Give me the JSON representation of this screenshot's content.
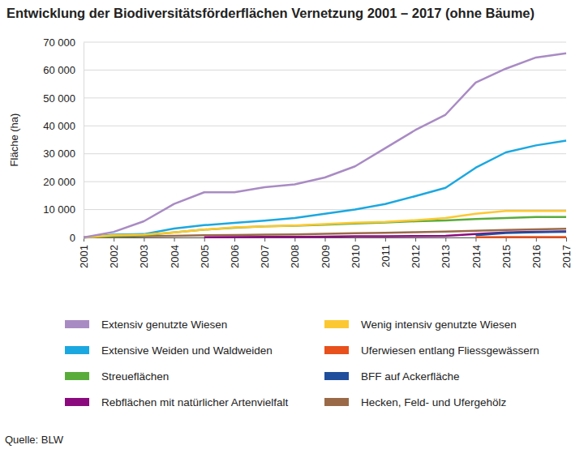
{
  "chart_data": {
    "type": "line",
    "title": "Entwicklung der Biodiversitätsförderflächen Vernetzung 2001 – 2017 (ohne Bäume)",
    "y_label": "Fläche (ha)",
    "source": "Quelle: BLW",
    "x": [
      2001,
      2002,
      2003,
      2004,
      2005,
      2006,
      2007,
      2008,
      2009,
      2010,
      2011,
      2012,
      2013,
      2014,
      2015,
      2016,
      2017
    ],
    "xlim": [
      2001,
      2017
    ],
    "xticks": [
      2001,
      2002,
      2003,
      2004,
      2005,
      2006,
      2007,
      2008,
      2009,
      2010,
      2011,
      2012,
      2013,
      2014,
      2015,
      2016,
      2017
    ],
    "ylim": [
      0,
      70000
    ],
    "yticks": [
      0,
      {
        "value": 10000,
        "label": "10 000"
      },
      {
        "value": 20000,
        "label": "20 000"
      },
      {
        "value": 30000,
        "label": "30 000"
      },
      {
        "value": 40000,
        "label": "40 000"
      },
      {
        "value": 50000,
        "label": "50 000"
      },
      {
        "value": 60000,
        "label": "60 000"
      },
      {
        "value": 70000,
        "label": "70 000"
      }
    ],
    "grid": true,
    "legend": "bottom",
    "series": [
      {
        "name": "Extensiv genutzte Wiesen",
        "color": "#a98bc4",
        "values": [
          0,
          2000,
          5800,
          12000,
          16200,
          16200,
          18000,
          19000,
          21500,
          25500,
          32000,
          38500,
          44000,
          55500,
          60500,
          64500,
          66000
        ]
      },
      {
        "name": "Wenig intensiv genutzte Wiesen",
        "color": "#fcc832",
        "values": [
          0,
          800,
          1000,
          1800,
          2800,
          3600,
          4000,
          4300,
          4800,
          5300,
          5600,
          6200,
          7000,
          8500,
          9500,
          9500,
          9500
        ]
      },
      {
        "name": "Extensive Weiden und Waldweiden",
        "color": "#1ba8e0",
        "values": [
          0,
          1000,
          1200,
          3200,
          4400,
          5200,
          6000,
          7000,
          8500,
          10000,
          12000,
          14800,
          17800,
          25000,
          30500,
          33000,
          34700
        ]
      },
      {
        "name": "Uferwiesen entlang Fliessgewässern",
        "color": "#e8501c",
        "values": [
          null,
          null,
          null,
          null,
          null,
          null,
          null,
          null,
          null,
          null,
          null,
          null,
          null,
          100,
          150,
          150,
          150
        ]
      },
      {
        "name": "Streueflächen",
        "color": "#5aac3a",
        "values": [
          0,
          500,
          800,
          1800,
          2800,
          3500,
          4000,
          4200,
          4600,
          5000,
          5400,
          5800,
          6100,
          6600,
          7000,
          7300,
          7300
        ]
      },
      {
        "name": "BFF auf Ackerfläche",
        "color": "#1f4e9c",
        "values": [
          null,
          null,
          null,
          null,
          null,
          null,
          null,
          null,
          null,
          null,
          null,
          null,
          null,
          800,
          1600,
          1900,
          2000
        ]
      },
      {
        "name": "Rebflächen mit natürlicher Artenvielfalt",
        "color": "#8b0a7e",
        "values": [
          null,
          null,
          null,
          null,
          100,
          150,
          200,
          250,
          300,
          400,
          450,
          500,
          600,
          1200,
          1800,
          2000,
          2200
        ]
      },
      {
        "name": "Hecken, Feld- und Ufergehölz",
        "color": "#9a6a48",
        "values": [
          0,
          200,
          400,
          600,
          800,
          900,
          1000,
          1100,
          1300,
          1500,
          1700,
          1900,
          2100,
          2400,
          2700,
          2900,
          3100
        ]
      }
    ]
  }
}
